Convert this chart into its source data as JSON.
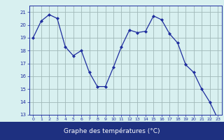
{
  "x": [
    0,
    1,
    2,
    3,
    4,
    5,
    6,
    7,
    8,
    9,
    10,
    11,
    12,
    13,
    14,
    15,
    16,
    17,
    18,
    19,
    20,
    21,
    22,
    23
  ],
  "y": [
    19.0,
    20.3,
    20.8,
    20.5,
    18.3,
    17.6,
    18.0,
    16.3,
    15.2,
    15.2,
    16.7,
    18.3,
    19.6,
    19.4,
    19.5,
    20.7,
    20.4,
    19.3,
    18.6,
    16.9,
    16.3,
    15.0,
    14.0,
    12.7
  ],
  "line_color": "#1e2d9e",
  "marker": "D",
  "marker_size": 2,
  "bg_color": "#d8f0f0",
  "grid_color": "#a0b8b8",
  "xlabel": "Graphe des températures (°C)",
  "xlabel_color": "#ffffff",
  "xlabel_bg": "#1e3080",
  "ylim": [
    13,
    21.5
  ],
  "xlim": [
    -0.5,
    23.5
  ],
  "yticks": [
    13,
    14,
    15,
    16,
    17,
    18,
    19,
    20,
    21
  ],
  "xticks": [
    0,
    1,
    2,
    3,
    4,
    5,
    6,
    7,
    8,
    9,
    10,
    11,
    12,
    13,
    14,
    15,
    16,
    17,
    18,
    19,
    20,
    21,
    22,
    23
  ],
  "tick_label_color": "#1e2d9e",
  "spine_color": "#1e2d9e"
}
